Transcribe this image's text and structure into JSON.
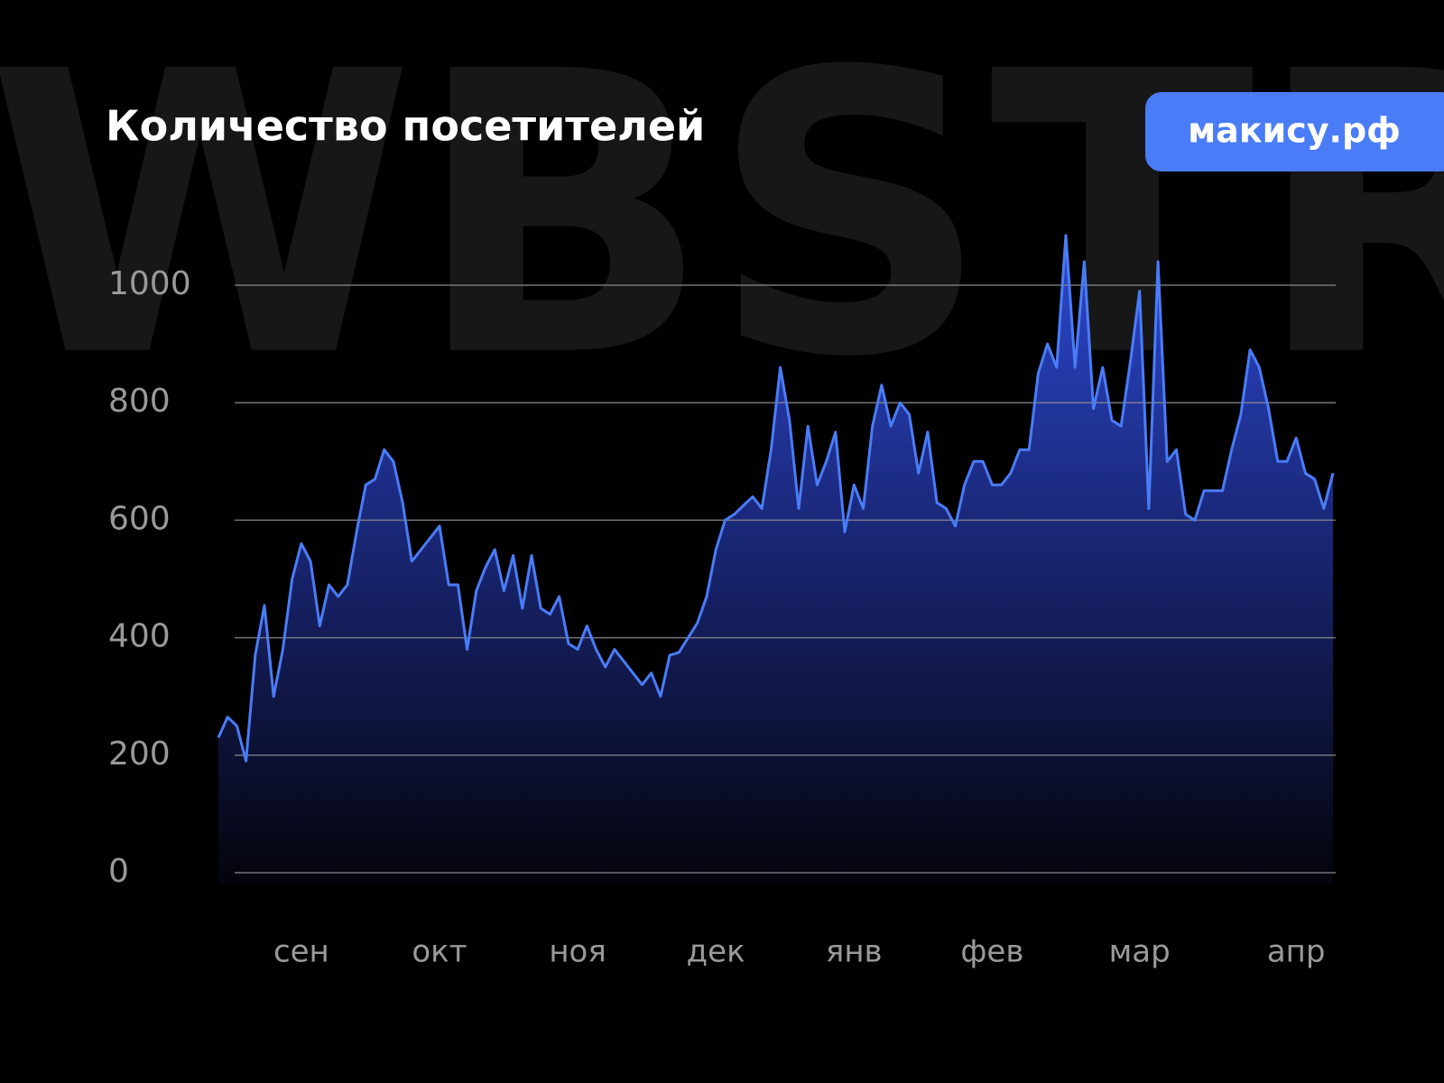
{
  "watermark": "WBSTR",
  "badge": "макису.рф",
  "chart_data": {
    "type": "area",
    "title": "Количество посетителей",
    "categories": [
      null,
      null,
      null,
      null,
      null,
      null,
      null,
      null,
      null,
      "сен",
      null,
      null,
      null,
      null,
      null,
      null,
      null,
      null,
      null,
      null,
      null,
      null,
      null,
      null,
      "окт",
      null,
      null,
      null,
      null,
      null,
      null,
      null,
      null,
      null,
      null,
      null,
      null,
      null,
      null,
      "ноя",
      null,
      null,
      null,
      null,
      null,
      null,
      null,
      null,
      null,
      null,
      null,
      null,
      null,
      null,
      "дек",
      null,
      null,
      null,
      null,
      null,
      null,
      null,
      null,
      null,
      null,
      null,
      null,
      null,
      null,
      "янв",
      null,
      null,
      null,
      null,
      null,
      null,
      null,
      null,
      null,
      null,
      null,
      null,
      null,
      null,
      "фев",
      null,
      null,
      null,
      null,
      null,
      null,
      null,
      null,
      null,
      null,
      null,
      null,
      null,
      null,
      null,
      "мар",
      null,
      null,
      null,
      null,
      null,
      null,
      null,
      null,
      null,
      null,
      null,
      null,
      null,
      null,
      null,
      null,
      "апр",
      null,
      null,
      null,
      null
    ],
    "values": [
      230,
      265,
      250,
      190,
      370,
      455,
      300,
      380,
      500,
      560,
      530,
      420,
      490,
      470,
      490,
      580,
      660,
      670,
      720,
      700,
      630,
      530,
      550,
      570,
      590,
      490,
      490,
      380,
      480,
      520,
      550,
      480,
      540,
      450,
      540,
      450,
      440,
      470,
      390,
      380,
      420,
      380,
      350,
      380,
      360,
      340,
      320,
      340,
      300,
      370,
      375,
      400,
      425,
      470,
      550,
      600,
      610,
      625,
      640,
      620,
      720,
      860,
      770,
      620,
      760,
      660,
      700,
      750,
      580,
      660,
      620,
      760,
      830,
      760,
      800,
      780,
      680,
      750,
      630,
      620,
      590,
      660,
      700,
      700,
      660,
      660,
      680,
      720,
      720,
      850,
      900,
      860,
      1085,
      860,
      1040,
      790,
      860,
      770,
      760,
      870,
      990,
      620,
      1040,
      700,
      720,
      610,
      600,
      650,
      650,
      650,
      720,
      780,
      890,
      860,
      790,
      700,
      700,
      740,
      680,
      670,
      620,
      680
    ],
    "color": "#4a7cf7",
    "ylim": [
      0,
      1000
    ],
    "yticks": [
      0,
      200,
      400,
      600,
      800,
      1000
    ],
    "grid": true
  }
}
